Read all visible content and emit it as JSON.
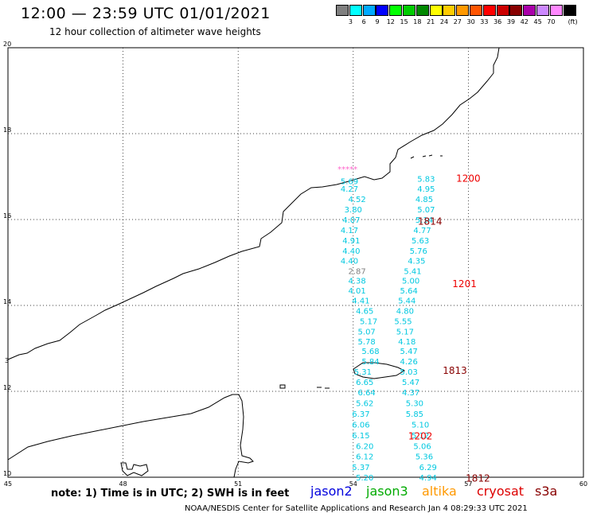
{
  "header": {
    "title": "12:00 — 23:59 UTC 01/01/2021",
    "subtitle": "12 hour collection of altimeter wave heights"
  },
  "legend": {
    "unit": "(ft)",
    "colors": [
      "#808080",
      "#00ffff",
      "#00aaff",
      "#0000ff",
      "#00ff00",
      "#00cc00",
      "#008800",
      "#ffff00",
      "#ffcc00",
      "#ff9900",
      "#ff5500",
      "#ff0000",
      "#cc0000",
      "#880000",
      "#aa00aa",
      "#cc88ff",
      "#ff88ff",
      "#000000"
    ],
    "labels": [
      "3",
      "6",
      "9",
      "12",
      "15",
      "18",
      "21",
      "24",
      "27",
      "30",
      "33",
      "36",
      "39",
      "42",
      "45",
      "70"
    ]
  },
  "axes": {
    "x_ticks": [
      "45",
      "48",
      "51",
      "54",
      "57",
      "60"
    ],
    "y_ticks": [
      "20",
      "18",
      "16",
      "14",
      "12",
      "10"
    ],
    "west_marker": "3"
  },
  "chart_data": {
    "type": "scatter",
    "xlim": [
      45,
      60
    ],
    "ylim": [
      10,
      20
    ],
    "grid": true,
    "track_a": {
      "color": "#00c8e0",
      "points": [
        {
          "lon": 53.9,
          "lat": 16.9,
          "value": "5.69"
        },
        {
          "lon": 53.9,
          "lat": 16.72,
          "value": "4.27"
        },
        {
          "lon": 54.1,
          "lat": 16.48,
          "value": "4.52"
        },
        {
          "lon": 54.0,
          "lat": 16.24,
          "value": "3.80"
        },
        {
          "lon": 53.95,
          "lat": 16.0,
          "value": "4.07"
        },
        {
          "lon": 53.9,
          "lat": 15.76,
          "value": "4.17"
        },
        {
          "lon": 53.95,
          "lat": 15.52,
          "value": "4.91"
        },
        {
          "lon": 53.95,
          "lat": 15.28,
          "value": "4.40"
        },
        {
          "lon": 53.9,
          "lat": 15.05,
          "value": "4.40"
        },
        {
          "lon": 54.1,
          "lat": 14.81,
          "value": "2.87",
          "color": "#808080"
        },
        {
          "lon": 54.1,
          "lat": 14.58,
          "value": "4.38"
        },
        {
          "lon": 54.1,
          "lat": 14.35,
          "value": "4.01"
        },
        {
          "lon": 54.2,
          "lat": 14.12,
          "value": "4.41"
        },
        {
          "lon": 54.3,
          "lat": 13.88,
          "value": "4.65"
        },
        {
          "lon": 54.4,
          "lat": 13.64,
          "value": "5.17"
        },
        {
          "lon": 54.35,
          "lat": 13.4,
          "value": "5.07"
        },
        {
          "lon": 54.35,
          "lat": 13.17,
          "value": "5.78"
        },
        {
          "lon": 54.45,
          "lat": 12.94,
          "value": "5.68"
        },
        {
          "lon": 54.45,
          "lat": 12.7,
          "value": "5.84"
        },
        {
          "lon": 54.25,
          "lat": 12.46,
          "value": "5.31"
        },
        {
          "lon": 54.3,
          "lat": 12.22,
          "value": "6.65"
        },
        {
          "lon": 54.35,
          "lat": 11.98,
          "value": "6.64"
        },
        {
          "lon": 54.3,
          "lat": 11.73,
          "value": "5.62"
        },
        {
          "lon": 54.2,
          "lat": 11.48,
          "value": "6.37"
        },
        {
          "lon": 54.2,
          "lat": 11.23,
          "value": "6.06"
        },
        {
          "lon": 54.2,
          "lat": 10.98,
          "value": "6.15"
        },
        {
          "lon": 54.3,
          "lat": 10.73,
          "value": "6.20"
        },
        {
          "lon": 54.3,
          "lat": 10.49,
          "value": "6.12"
        },
        {
          "lon": 54.2,
          "lat": 10.24,
          "value": "5.37"
        },
        {
          "lon": 54.3,
          "lat": 10.0,
          "value": "5.20"
        }
      ]
    },
    "track_b": {
      "color": "#00c8e0",
      "points": [
        {
          "lon": 55.9,
          "lat": 16.95,
          "value": "5.83"
        },
        {
          "lon": 55.9,
          "lat": 16.72,
          "value": "4.95"
        },
        {
          "lon": 55.85,
          "lat": 16.48,
          "value": "4.85"
        },
        {
          "lon": 55.9,
          "lat": 16.24,
          "value": "5.07"
        },
        {
          "lon": 55.85,
          "lat": 16.0,
          "value": "5.14"
        },
        {
          "lon": 55.8,
          "lat": 15.76,
          "value": "4.77"
        },
        {
          "lon": 55.75,
          "lat": 15.52,
          "value": "5.63"
        },
        {
          "lon": 55.7,
          "lat": 15.28,
          "value": "5.76"
        },
        {
          "lon": 55.65,
          "lat": 15.05,
          "value": "4.35"
        },
        {
          "lon": 55.55,
          "lat": 14.81,
          "value": "5.41"
        },
        {
          "lon": 55.5,
          "lat": 14.58,
          "value": "5.00"
        },
        {
          "lon": 55.45,
          "lat": 14.35,
          "value": "5.64"
        },
        {
          "lon": 55.4,
          "lat": 14.12,
          "value": "5.44"
        },
        {
          "lon": 55.35,
          "lat": 13.88,
          "value": "4.80"
        },
        {
          "lon": 55.3,
          "lat": 13.64,
          "value": "5.55"
        },
        {
          "lon": 55.35,
          "lat": 13.4,
          "value": "5.17"
        },
        {
          "lon": 55.4,
          "lat": 13.17,
          "value": "4.18"
        },
        {
          "lon": 55.45,
          "lat": 12.94,
          "value": "5.47"
        },
        {
          "lon": 55.45,
          "lat": 12.7,
          "value": "4.26"
        },
        {
          "lon": 55.45,
          "lat": 12.46,
          "value": "5.03"
        },
        {
          "lon": 55.5,
          "lat": 12.22,
          "value": "5.47"
        },
        {
          "lon": 55.5,
          "lat": 11.98,
          "value": "4.37"
        },
        {
          "lon": 55.6,
          "lat": 11.73,
          "value": "5.30"
        },
        {
          "lon": 55.6,
          "lat": 11.48,
          "value": "5.85"
        },
        {
          "lon": 55.75,
          "lat": 11.23,
          "value": "5.10"
        },
        {
          "lon": 55.75,
          "lat": 10.98,
          "value": "5.12"
        },
        {
          "lon": 55.8,
          "lat": 10.73,
          "value": "5.06"
        },
        {
          "lon": 55.85,
          "lat": 10.49,
          "value": "5.36"
        },
        {
          "lon": 55.95,
          "lat": 10.24,
          "value": "6.29"
        },
        {
          "lon": 55.95,
          "lat": 10.0,
          "value": "4.94"
        }
      ]
    },
    "times": [
      {
        "lon": 57.0,
        "lat": 16.95,
        "value": "1200",
        "color": "#ee0000"
      },
      {
        "lon": 56.0,
        "lat": 15.95,
        "value": "1814",
        "color": "#880000"
      },
      {
        "lon": 56.9,
        "lat": 14.5,
        "value": "1201",
        "color": "#ee0000"
      },
      {
        "lon": 56.65,
        "lat": 12.48,
        "value": "1813",
        "color": "#880000"
      },
      {
        "lon": 55.75,
        "lat": 10.95,
        "value": "1202",
        "color": "#ee0000"
      },
      {
        "lon": 57.25,
        "lat": 9.97,
        "value": "1812",
        "color": "#880000"
      }
    ],
    "flag": {
      "lon": 53.85,
      "lat": 17.17,
      "value": "*****",
      "color": "#ff66cc"
    }
  },
  "footer": {
    "note": "note: 1) Time is in UTC; 2) SWH is in feet",
    "satellites": [
      {
        "name": "jason2",
        "color": "#0000dd"
      },
      {
        "name": "jason3",
        "color": "#00aa00"
      },
      {
        "name": "altika",
        "color": "#ff9900"
      },
      {
        "name": "cryosat",
        "color": "#dd0000"
      },
      {
        "name": "s3a",
        "color": "#880000"
      }
    ],
    "credit": "NOAA/NESDIS Center for Satellite Applications and Research   Jan  4 08:29:33 UTC 2021"
  }
}
